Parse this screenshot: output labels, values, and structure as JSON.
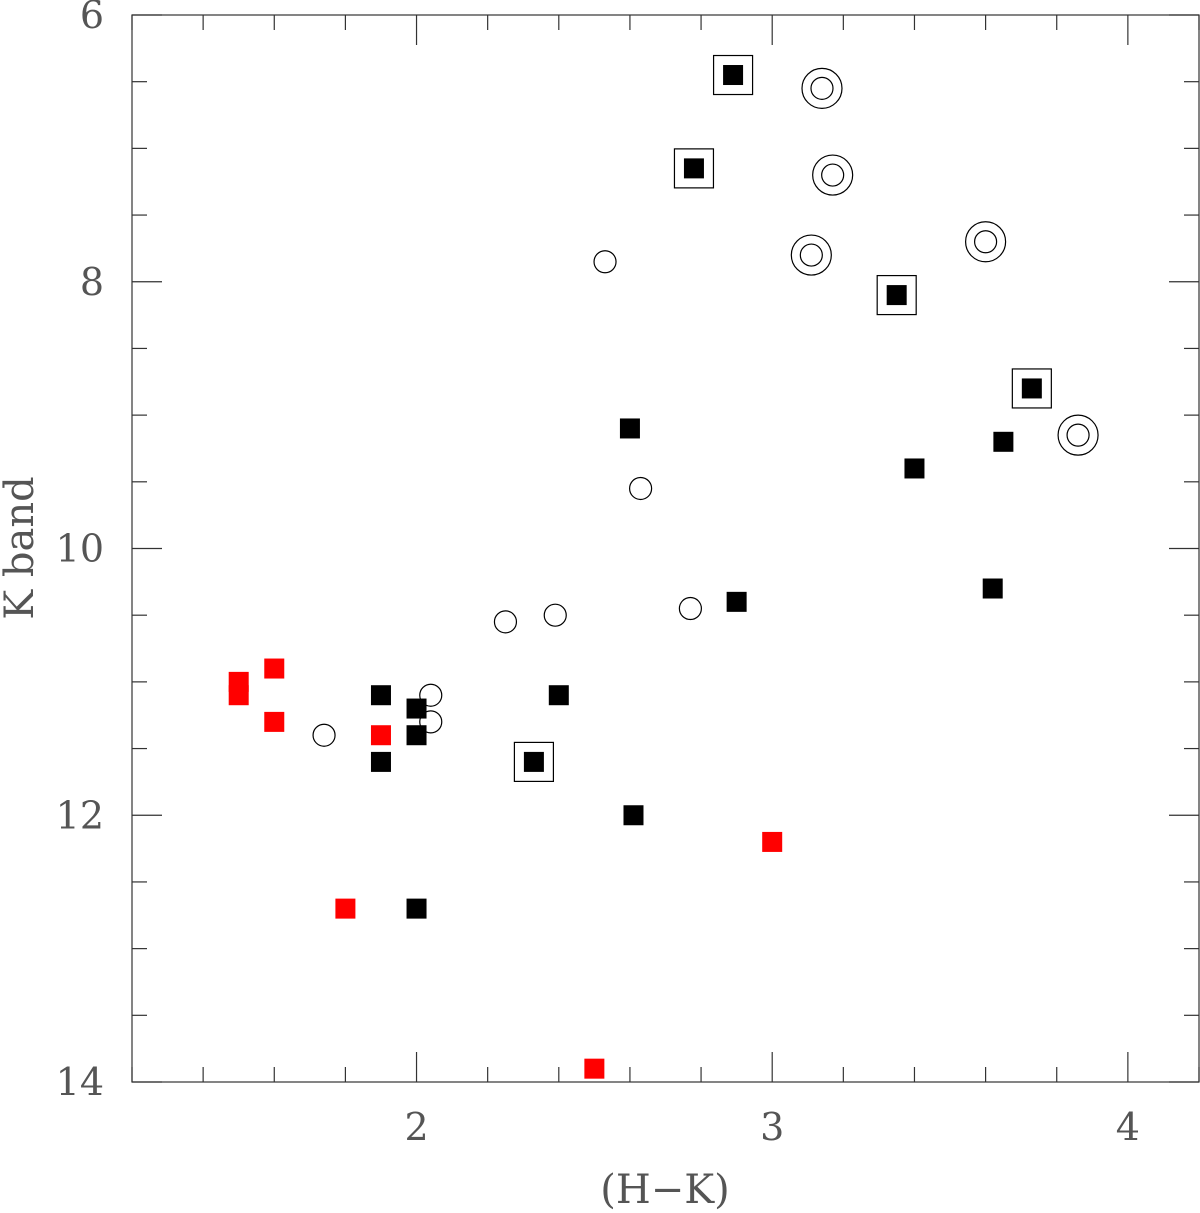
{
  "chart_data": {
    "type": "scatter",
    "title": "",
    "xlabel": "(H−K)",
    "ylabel": "K band",
    "xlim": [
      1.2,
      4.2
    ],
    "ylim": [
      14,
      6
    ],
    "y_inverted": true,
    "x_ticks": [
      2,
      3,
      4
    ],
    "x_tick_labels": [
      "2",
      "3",
      "4"
    ],
    "x_minor_step": 0.2,
    "y_ticks": [
      6,
      8,
      10,
      12,
      14
    ],
    "y_tick_labels": [
      "6",
      "8",
      "10",
      "12",
      "14"
    ],
    "y_minor_step": 0.5,
    "grid": false,
    "colors": {
      "black": "#000000",
      "red": "#ff0000",
      "frame": "#333333",
      "text": "#555555"
    },
    "series": [
      {
        "marker": "filled-square",
        "color": "#000000",
        "points": [
          [
            2.6,
            9.1
          ],
          [
            3.4,
            9.4
          ],
          [
            3.65,
            9.2
          ],
          [
            2.9,
            10.4
          ],
          [
            3.62,
            10.3
          ],
          [
            1.9,
            11.1
          ],
          [
            2.0,
            11.2
          ],
          [
            2.0,
            11.4
          ],
          [
            1.9,
            11.6
          ],
          [
            2.4,
            11.1
          ],
          [
            2.61,
            12.0
          ],
          [
            2.0,
            12.7
          ]
        ]
      },
      {
        "marker": "boxed-filled-square",
        "color": "#000000",
        "points": [
          [
            2.89,
            6.45
          ],
          [
            2.78,
            7.15
          ],
          [
            3.35,
            8.1
          ],
          [
            3.73,
            8.8
          ],
          [
            2.33,
            11.6
          ]
        ]
      },
      {
        "marker": "filled-square",
        "color": "#ff0000",
        "points": [
          [
            1.5,
            11.0
          ],
          [
            1.5,
            11.1
          ],
          [
            1.6,
            10.9
          ],
          [
            1.6,
            11.3
          ],
          [
            1.9,
            11.4
          ],
          [
            1.8,
            12.7
          ],
          [
            3.0,
            12.2
          ],
          [
            2.5,
            13.9
          ]
        ]
      },
      {
        "marker": "open-circle",
        "color": "#000000",
        "points": [
          [
            2.53,
            7.85
          ],
          [
            2.63,
            9.55
          ],
          [
            2.77,
            10.45
          ],
          [
            2.25,
            10.55
          ],
          [
            2.39,
            10.5
          ],
          [
            2.04,
            11.1
          ],
          [
            2.04,
            11.3
          ],
          [
            1.74,
            11.4
          ]
        ]
      },
      {
        "marker": "double-circle",
        "color": "#000000",
        "points": [
          [
            3.14,
            6.55
          ],
          [
            3.17,
            7.2
          ],
          [
            3.11,
            7.8
          ],
          [
            3.6,
            7.7
          ],
          [
            3.86,
            9.15
          ]
        ]
      }
    ]
  }
}
